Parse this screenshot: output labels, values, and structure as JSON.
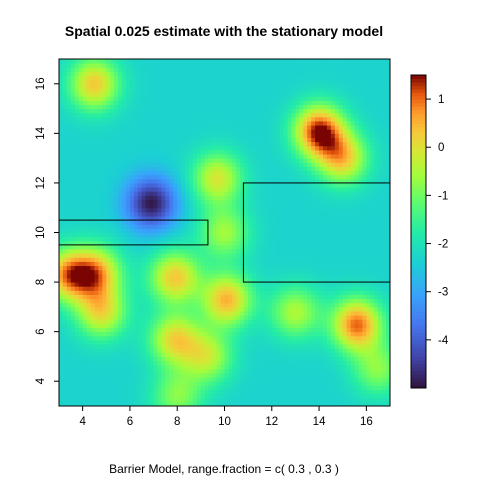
{
  "chart_data": {
    "type": "heatmap",
    "title": "Spatial 0.025 estimate with the stationary model",
    "xlabel": "Barrier Model, range.fraction = c( 0.3 ,  0.3 )",
    "ylabel": "",
    "xlim": [
      3,
      17
    ],
    "ylim": [
      3,
      17
    ],
    "x_ticks": [
      4,
      6,
      8,
      10,
      12,
      14,
      16
    ],
    "y_ticks": [
      4,
      6,
      8,
      10,
      12,
      14,
      16
    ],
    "legend_ticks": [
      1,
      0,
      -1,
      -2,
      -3,
      -4
    ],
    "legend_range": [
      -5,
      1.5
    ],
    "legend_placement": "right",
    "background_value": -2.3,
    "hotspots": [
      {
        "x": 4.5,
        "y": 16.0,
        "value": 0.3
      },
      {
        "x": 6.9,
        "y": 11.2,
        "value": -4.9
      },
      {
        "x": 14.0,
        "y": 14.1,
        "value": 1.4
      },
      {
        "x": 15.0,
        "y": 13.0,
        "value": 0.2
      },
      {
        "x": 9.7,
        "y": 12.2,
        "value": -0.1
      },
      {
        "x": 3.4,
        "y": 8.3,
        "value": 0.6
      },
      {
        "x": 4.6,
        "y": 8.4,
        "value": 0.3
      },
      {
        "x": 4.8,
        "y": 6.8,
        "value": 0.0
      },
      {
        "x": 7.9,
        "y": 8.2,
        "value": 0.3
      },
      {
        "x": 10.1,
        "y": 7.3,
        "value": 0.5
      },
      {
        "x": 7.9,
        "y": 5.7,
        "value": 0.1
      },
      {
        "x": 9.3,
        "y": 5.0,
        "value": -0.4
      },
      {
        "x": 13.0,
        "y": 6.8,
        "value": -0.5
      },
      {
        "x": 15.6,
        "y": 6.3,
        "value": 1.0
      },
      {
        "x": 10.0,
        "y": 10.0,
        "value": -0.6
      },
      {
        "x": 8.0,
        "y": 3.4,
        "value": -0.8
      },
      {
        "x": 16.5,
        "y": 4.5,
        "value": -0.8
      }
    ],
    "barriers": [
      {
        "x0": 3,
        "y0": 9.5,
        "x1": 9.3,
        "y1": 10.5
      },
      {
        "x0": 10.8,
        "y0": 8,
        "x1": 17,
        "y1": 12
      }
    ]
  }
}
